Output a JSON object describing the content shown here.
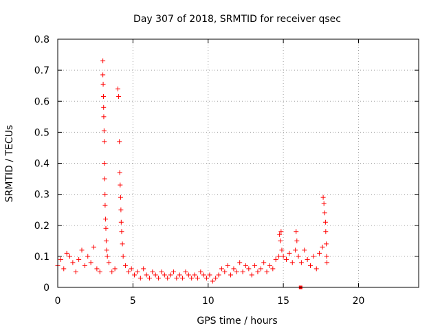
{
  "chart_data": {
    "type": "scatter",
    "title": "Day 307 of 2018, SRMTID for receiver qsec",
    "xlabel": "GPS time / hours",
    "ylabel": "SRMTID / TECUs",
    "xlim": [
      0,
      24
    ],
    "ylim": [
      0,
      0.8
    ],
    "xticks": [
      0,
      5,
      10,
      15,
      20
    ],
    "xtick_labels": [
      "0",
      "5",
      "10",
      "15",
      "20"
    ],
    "yticks": [
      0,
      0.1,
      0.2,
      0.3,
      0.4,
      0.5,
      0.6,
      0.7,
      0.8
    ],
    "ytick_labels": [
      "0",
      "0.1",
      "0.2",
      "0.3",
      "0.4",
      "0.5",
      "0.6",
      "0.7",
      "0.8"
    ],
    "grid": true,
    "marker": "+",
    "color": "#ff0000",
    "series": [
      {
        "name": "SRMTID",
        "x": [
          0.0,
          0.2,
          0.4,
          0.6,
          0.8,
          1.0,
          1.2,
          1.4,
          1.6,
          1.8,
          2.0,
          2.2,
          2.4,
          2.6,
          2.8,
          3.0,
          3.0,
          3.02,
          3.04,
          3.05,
          3.06,
          3.08,
          3.1,
          3.1,
          3.12,
          3.14,
          3.15,
          3.18,
          3.2,
          3.22,
          3.25,
          3.3,
          3.4,
          3.6,
          3.8,
          4.0,
          4.05,
          4.1,
          4.12,
          4.15,
          4.18,
          4.2,
          4.22,
          4.25,
          4.3,
          4.35,
          4.5,
          4.7,
          4.9,
          5.1,
          5.3,
          5.5,
          5.7,
          5.9,
          6.1,
          6.3,
          6.5,
          6.7,
          6.9,
          7.1,
          7.3,
          7.5,
          7.7,
          7.9,
          8.1,
          8.3,
          8.5,
          8.7,
          8.9,
          9.1,
          9.3,
          9.5,
          9.7,
          9.9,
          10.1,
          10.3,
          10.5,
          10.7,
          10.9,
          11.1,
          11.3,
          11.5,
          11.7,
          11.9,
          12.1,
          12.3,
          12.5,
          12.7,
          12.9,
          13.1,
          13.3,
          13.5,
          13.7,
          13.9,
          14.1,
          14.3,
          14.5,
          14.7,
          14.75,
          14.8,
          14.85,
          14.9,
          15.0,
          15.2,
          15.4,
          15.6,
          15.8,
          15.85,
          15.9,
          16.0,
          16.2,
          16.4,
          16.6,
          16.8,
          17.0,
          17.2,
          17.4,
          17.6,
          17.65,
          17.7,
          17.75,
          17.8,
          17.82,
          17.85,
          17.88,
          17.9
        ],
        "y": [
          0.07,
          0.09,
          0.06,
          0.11,
          0.1,
          0.08,
          0.05,
          0.09,
          0.12,
          0.07,
          0.1,
          0.08,
          0.13,
          0.06,
          0.05,
          0.73,
          0.685,
          0.655,
          0.615,
          0.58,
          0.55,
          0.505,
          0.47,
          0.4,
          0.35,
          0.3,
          0.265,
          0.22,
          0.19,
          0.15,
          0.12,
          0.1,
          0.08,
          0.05,
          0.06,
          0.64,
          0.615,
          0.47,
          0.37,
          0.33,
          0.29,
          0.25,
          0.21,
          0.18,
          0.14,
          0.1,
          0.07,
          0.05,
          0.06,
          0.04,
          0.05,
          0.03,
          0.06,
          0.04,
          0.03,
          0.05,
          0.04,
          0.03,
          0.05,
          0.04,
          0.03,
          0.04,
          0.05,
          0.03,
          0.04,
          0.03,
          0.05,
          0.04,
          0.03,
          0.04,
          0.03,
          0.05,
          0.04,
          0.03,
          0.04,
          0.02,
          0.03,
          0.04,
          0.06,
          0.05,
          0.07,
          0.04,
          0.06,
          0.05,
          0.08,
          0.05,
          0.07,
          0.06,
          0.04,
          0.07,
          0.05,
          0.06,
          0.08,
          0.05,
          0.07,
          0.06,
          0.09,
          0.1,
          0.17,
          0.15,
          0.18,
          0.12,
          0.1,
          0.09,
          0.11,
          0.08,
          0.12,
          0.18,
          0.15,
          0.1,
          0.08,
          0.12,
          0.09,
          0.07,
          0.1,
          0.06,
          0.11,
          0.13,
          0.29,
          0.27,
          0.24,
          0.21,
          0.18,
          0.14,
          0.1,
          0.08
        ]
      }
    ],
    "extra_points": [
      {
        "x": 16.15,
        "y": 0.0,
        "shape": "square"
      }
    ]
  }
}
